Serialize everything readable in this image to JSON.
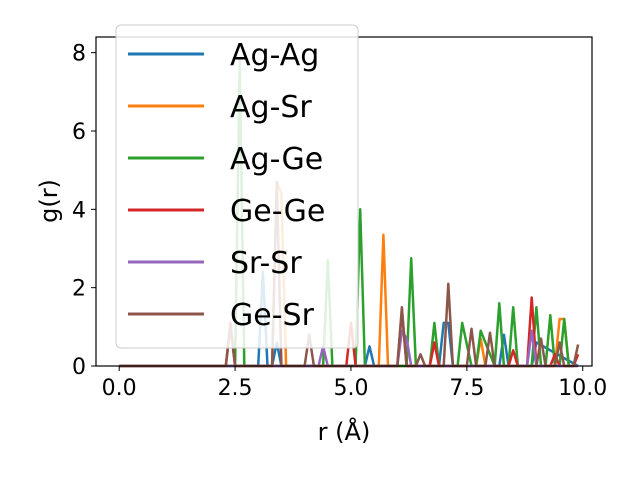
{
  "chart_data": {
    "type": "line",
    "xlabel": "r (Å)",
    "ylabel": "g(r)",
    "xlim": [
      -0.5,
      10.2
    ],
    "ylim": [
      0,
      8.4
    ],
    "x_ticks": [
      "0.0",
      "2.5",
      "5.0",
      "7.5",
      "10.0"
    ],
    "x_tick_values": [
      0,
      2.5,
      5,
      7.5,
      10
    ],
    "y_ticks": [
      "0",
      "2",
      "4",
      "6",
      "8"
    ],
    "y_tick_values": [
      0,
      2,
      4,
      6,
      8
    ],
    "legend_position": "upper-left",
    "grid": false,
    "series": [
      {
        "name": "Ag-Ag",
        "color": "#1f77b4",
        "x": [
          0,
          2.0,
          3.0,
          3.1,
          3.2,
          3.3,
          3.4,
          3.5,
          5.2,
          5.3,
          5.4,
          5.5,
          6.3,
          6.9,
          7.0,
          7.1,
          7.2,
          8.2,
          8.3,
          8.4,
          8.9,
          9.0,
          9.9
        ],
        "y": [
          0,
          0,
          0,
          2.4,
          0,
          0,
          0.6,
          0,
          0,
          0,
          0.5,
          0,
          0,
          0,
          1.1,
          1.1,
          0,
          0,
          0.8,
          0,
          0,
          0.6,
          0
        ]
      },
      {
        "name": "Ag-Sr",
        "color": "#ff7f0e",
        "x": [
          0,
          3.0,
          3.3,
          3.4,
          3.5,
          3.6,
          5.6,
          5.7,
          5.8,
          7.7,
          7.8,
          7.9,
          9.4,
          9.5,
          9.6,
          9.7,
          9.9
        ],
        "y": [
          0,
          0,
          0,
          4.7,
          4.4,
          0,
          0,
          3.35,
          0,
          0,
          0.7,
          0,
          0,
          1.2,
          1.2,
          0,
          0
        ]
      },
      {
        "name": "Ag-Ge",
        "color": "#2ca02c",
        "x": [
          0,
          2.5,
          2.6,
          2.7,
          2.8,
          4.4,
          4.5,
          4.6,
          5.1,
          5.2,
          5.3,
          6.2,
          6.3,
          6.4,
          6.7,
          6.8,
          6.9,
          7.0,
          7.3,
          7.4,
          7.6,
          7.7,
          7.8,
          8.1,
          8.2,
          8.3,
          8.4,
          8.5,
          8.6,
          8.9,
          9.0,
          9.1,
          9.2,
          9.3,
          9.4,
          9.5,
          9.6,
          9.7,
          9.8
        ],
        "y": [
          0,
          0,
          7.8,
          0,
          0,
          0,
          2.7,
          0,
          0,
          4.0,
          0,
          0,
          2.75,
          0,
          0,
          1.1,
          0,
          0,
          0,
          1.1,
          0,
          0,
          0.9,
          0,
          1.6,
          0,
          0,
          1.5,
          0,
          0,
          1.5,
          0,
          0,
          1.3,
          0,
          0,
          1.2,
          0,
          0
        ]
      },
      {
        "name": "Ge-Ge",
        "color": "#d62728",
        "x": [
          0,
          2.3,
          2.4,
          2.5,
          4.9,
          5.0,
          5.1,
          6.0,
          6.1,
          6.2,
          6.7,
          6.8,
          6.9,
          8.4,
          8.5,
          8.6,
          8.8,
          8.9,
          9.0,
          9.3,
          9.4,
          9.5,
          9.8,
          9.9
        ],
        "y": [
          0,
          0,
          1.1,
          0,
          0,
          1.1,
          0,
          0,
          1.4,
          0,
          0,
          0.6,
          0,
          0,
          0.4,
          0,
          0,
          1.75,
          0,
          0,
          0.3,
          0,
          0,
          0.3
        ]
      },
      {
        "name": "Sr-Sr",
        "color": "#9467bd",
        "x": [
          0,
          4.3,
          4.4,
          4.5,
          6.0,
          6.1,
          6.2,
          6.3,
          8.8,
          8.9,
          9.0,
          9.9
        ],
        "y": [
          0,
          0,
          0.5,
          0,
          0,
          0.9,
          0.7,
          0,
          0,
          0.9,
          0,
          0
        ]
      },
      {
        "name": "Ge-Sr",
        "color": "#8c564b",
        "x": [
          0,
          2.3,
          2.4,
          2.5,
          3.3,
          3.4,
          3.5,
          4.0,
          4.1,
          4.2,
          6.0,
          6.1,
          6.2,
          6.4,
          6.5,
          6.6,
          7.0,
          7.1,
          7.2,
          7.5,
          7.6,
          7.7,
          7.9,
          8.0,
          8.1,
          9.0,
          9.1,
          9.2,
          9.4,
          9.5,
          9.6,
          9.8,
          9.9
        ],
        "y": [
          0,
          0,
          1.0,
          0,
          0,
          4.7,
          0,
          0,
          0.8,
          0,
          0,
          1.5,
          0,
          0,
          0.3,
          0,
          0,
          2.1,
          0,
          0,
          0.95,
          0,
          0,
          0.85,
          0,
          0,
          0.7,
          0,
          0,
          0.6,
          0,
          0,
          0.55
        ]
      }
    ]
  }
}
